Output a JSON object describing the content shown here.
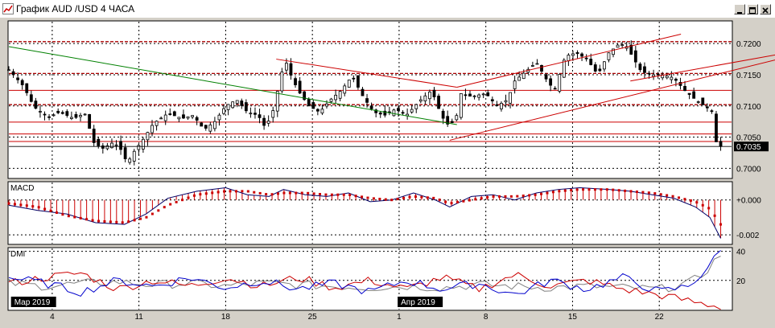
{
  "window": {
    "title": "График AUD /USD  4 ЧАСА",
    "buttons": [
      "minimize",
      "maximize",
      "close"
    ],
    "icon": "chart-window-icon"
  },
  "chart_data": [
    {
      "panel": "price",
      "type": "candlestick",
      "symbol": "AUD/USD",
      "timeframe": "4 ЧАСА",
      "ylim": [
        0.6985,
        0.7235
      ],
      "y_ticks": [
        "0.7200",
        "0.7150",
        "0.7100",
        "0.7050",
        "0.7000"
      ],
      "current_price": "0.7035",
      "x_labels": [
        "4",
        "11",
        "18",
        "25",
        "1",
        "8",
        "15",
        "22"
      ],
      "month_labels": [
        "Мар 2019",
        "Апр 2019"
      ],
      "close_path": [
        [
          0.0,
          0.7158
        ],
        [
          2.0,
          0.7132
        ],
        [
          3.5,
          0.7098
        ],
        [
          5.5,
          0.7082
        ],
        [
          7.0,
          0.709
        ],
        [
          9.0,
          0.708
        ],
        [
          10.5,
          0.7088
        ],
        [
          11.8,
          0.704
        ],
        [
          13.0,
          0.7032
        ],
        [
          14.5,
          0.7042
        ],
        [
          15.5,
          0.703
        ],
        [
          16.4,
          0.7008
        ],
        [
          17.2,
          0.7025
        ],
        [
          18.5,
          0.7045
        ],
        [
          20.0,
          0.7072
        ],
        [
          22.0,
          0.7088
        ],
        [
          24.0,
          0.708
        ],
        [
          25.5,
          0.7085
        ],
        [
          27.0,
          0.7062
        ],
        [
          28.5,
          0.7075
        ],
        [
          30.0,
          0.71
        ],
        [
          31.5,
          0.711
        ],
        [
          33.0,
          0.709
        ],
        [
          34.5,
          0.7085
        ],
        [
          35.5,
          0.7065
        ],
        [
          36.5,
          0.709
        ],
        [
          37.5,
          0.714
        ],
        [
          38.2,
          0.7175
        ],
        [
          39.0,
          0.715
        ],
        [
          40.0,
          0.7125
        ],
        [
          41.5,
          0.71
        ],
        [
          43.0,
          0.709
        ],
        [
          44.5,
          0.711
        ],
        [
          46.0,
          0.7125
        ],
        [
          47.5,
          0.7148
        ],
        [
          49.0,
          0.7115
        ],
        [
          50.5,
          0.709
        ],
        [
          52.0,
          0.7085
        ],
        [
          53.5,
          0.7095
        ],
        [
          55.0,
          0.7085
        ],
        [
          57.0,
          0.711
        ],
        [
          58.5,
          0.7125
        ],
        [
          59.5,
          0.7095
        ],
        [
          60.5,
          0.707
        ],
        [
          61.8,
          0.7075
        ],
        [
          62.5,
          0.712
        ],
        [
          64.0,
          0.7115
        ],
        [
          66.0,
          0.712
        ],
        [
          67.5,
          0.71
        ],
        [
          69.0,
          0.711
        ],
        [
          70.0,
          0.714
        ],
        [
          71.5,
          0.7155
        ],
        [
          73.0,
          0.717
        ],
        [
          74.5,
          0.714
        ],
        [
          75.5,
          0.7125
        ],
        [
          77.0,
          0.718
        ],
        [
          78.5,
          0.7185
        ],
        [
          80.0,
          0.7175
        ],
        [
          81.5,
          0.715
        ],
        [
          83.0,
          0.7185
        ],
        [
          84.5,
          0.72
        ],
        [
          85.5,
          0.7195
        ],
        [
          86.5,
          0.7175
        ],
        [
          87.5,
          0.7155
        ],
        [
          89.0,
          0.715
        ],
        [
          90.5,
          0.715
        ],
        [
          92.0,
          0.7145
        ],
        [
          93.5,
          0.7125
        ],
        [
          95.0,
          0.711
        ],
        [
          96.5,
          0.7098
        ],
        [
          97.5,
          0.709
        ],
        [
          97.9,
          0.704
        ],
        [
          98.5,
          0.7035
        ]
      ],
      "trendlines": [
        {
          "color": "#008000",
          "from": [
            0,
            0.7195
          ],
          "to": [
            62,
            0.707
          ]
        },
        {
          "color": "#cc0000",
          "from": [
            37,
            0.7175
          ],
          "to": [
            62,
            0.713
          ]
        },
        {
          "color": "#cc0000",
          "from": [
            61,
            0.7045
          ],
          "to": [
            110,
            0.7185
          ]
        },
        {
          "color": "#cc0000",
          "from": [
            62,
            0.713
          ],
          "to": [
            93,
            0.7215
          ]
        },
        {
          "color": "#cc0000",
          "from": [
            86,
            0.714
          ],
          "to": [
            110,
            0.719
          ]
        }
      ],
      "hlines_dashed": [
        0.7203,
        0.7152,
        0.7102
      ],
      "hlines_solid": [
        0.7125,
        0.7074,
        0.7055,
        0.7043
      ]
    },
    {
      "panel": "macd",
      "type": "line+histogram",
      "label": "MACD",
      "ylim": [
        -0.0025,
        0.001
      ],
      "y_ticks": [
        "+0.000",
        "-0.002"
      ],
      "macd_path": [
        [
          0,
          -0.0003
        ],
        [
          4,
          -0.0006
        ],
        [
          8,
          -0.0008
        ],
        [
          12,
          -0.0013
        ],
        [
          16,
          -0.0014
        ],
        [
          19,
          -0.0008
        ],
        [
          22,
          0.0001
        ],
        [
          26,
          0.0005
        ],
        [
          30,
          0.0007
        ],
        [
          33,
          0.0003
        ],
        [
          36,
          0.0002
        ],
        [
          38,
          0.0006
        ],
        [
          41,
          0.0003
        ],
        [
          44,
          0.0002
        ],
        [
          47,
          0.0004
        ],
        [
          50,
          -0.0001
        ],
        [
          53,
          0.0
        ],
        [
          56,
          0.0004
        ],
        [
          59,
          0.0
        ],
        [
          61,
          -0.0004
        ],
        [
          64,
          0.0002
        ],
        [
          67,
          0.0003
        ],
        [
          70,
          0.0
        ],
        [
          73,
          0.0004
        ],
        [
          76,
          0.0006
        ],
        [
          79,
          0.0007
        ],
        [
          83,
          0.0006
        ],
        [
          86,
          0.0005
        ],
        [
          89,
          0.0003
        ],
        [
          92,
          0.0001
        ],
        [
          95,
          -0.0004
        ],
        [
          97,
          -0.001
        ],
        [
          98.5,
          -0.0022
        ]
      ],
      "signal_path": [
        [
          0,
          -0.0002
        ],
        [
          4,
          -0.0004
        ],
        [
          8,
          -0.0009
        ],
        [
          12,
          -0.0012
        ],
        [
          16,
          -0.0013
        ],
        [
          19,
          -0.001
        ],
        [
          22,
          -0.0003
        ],
        [
          26,
          0.0003
        ],
        [
          30,
          0.0005
        ],
        [
          33,
          0.0005
        ],
        [
          36,
          0.0003
        ],
        [
          38,
          0.0004
        ],
        [
          41,
          0.0004
        ],
        [
          44,
          0.0003
        ],
        [
          47,
          0.0003
        ],
        [
          50,
          0.0001
        ],
        [
          53,
          0.0
        ],
        [
          56,
          0.0002
        ],
        [
          59,
          0.0001
        ],
        [
          61,
          -0.0002
        ],
        [
          64,
          0.0
        ],
        [
          67,
          0.0002
        ],
        [
          70,
          0.0002
        ],
        [
          73,
          0.0003
        ],
        [
          76,
          0.0005
        ],
        [
          79,
          0.0006
        ],
        [
          83,
          0.0006
        ],
        [
          86,
          0.0005
        ],
        [
          89,
          0.0004
        ],
        [
          92,
          0.0002
        ],
        [
          95,
          -0.0001
        ],
        [
          97,
          -0.0005
        ],
        [
          98.5,
          -0.0014
        ]
      ]
    },
    {
      "panel": "dmi",
      "type": "line",
      "label": "DMI",
      "ylim": [
        0,
        42
      ],
      "y_ticks": [
        "40",
        "20"
      ],
      "series_colors": [
        "#0000cc",
        "#cc0000",
        "#808080"
      ],
      "blue_path": [
        [
          0,
          22
        ],
        [
          5,
          18
        ],
        [
          10,
          12
        ],
        [
          15,
          20
        ],
        [
          20,
          16
        ],
        [
          25,
          22
        ],
        [
          30,
          15
        ],
        [
          35,
          20
        ],
        [
          40,
          14
        ],
        [
          45,
          18
        ],
        [
          50,
          12
        ],
        [
          55,
          20
        ],
        [
          60,
          14
        ],
        [
          65,
          18
        ],
        [
          70,
          10
        ],
        [
          75,
          20
        ],
        [
          80,
          14
        ],
        [
          85,
          22
        ],
        [
          90,
          12
        ],
        [
          94,
          16
        ],
        [
          96,
          25
        ],
        [
          97.5,
          34
        ],
        [
          98.5,
          40
        ]
      ],
      "red_path": [
        [
          0,
          18
        ],
        [
          5,
          22
        ],
        [
          10,
          25
        ],
        [
          15,
          14
        ],
        [
          20,
          20
        ],
        [
          25,
          16
        ],
        [
          30,
          22
        ],
        [
          35,
          16
        ],
        [
          40,
          22
        ],
        [
          45,
          15
        ],
        [
          50,
          20
        ],
        [
          55,
          14
        ],
        [
          60,
          22
        ],
        [
          65,
          14
        ],
        [
          70,
          24
        ],
        [
          75,
          16
        ],
        [
          80,
          20
        ],
        [
          85,
          14
        ],
        [
          90,
          10
        ],
        [
          94,
          6
        ],
        [
          96,
          4
        ],
        [
          98.5,
          2
        ]
      ],
      "gray_path": [
        [
          0,
          18
        ],
        [
          5,
          16
        ],
        [
          10,
          18
        ],
        [
          15,
          19
        ],
        [
          20,
          17
        ],
        [
          25,
          18
        ],
        [
          30,
          16
        ],
        [
          35,
          18
        ],
        [
          40,
          17
        ],
        [
          45,
          16
        ],
        [
          50,
          15
        ],
        [
          55,
          16
        ],
        [
          60,
          15
        ],
        [
          65,
          17
        ],
        [
          70,
          16
        ],
        [
          75,
          15
        ],
        [
          80,
          16
        ],
        [
          85,
          15
        ],
        [
          90,
          14
        ],
        [
          94,
          18
        ],
        [
          96,
          24
        ],
        [
          98.5,
          38
        ]
      ]
    }
  ]
}
